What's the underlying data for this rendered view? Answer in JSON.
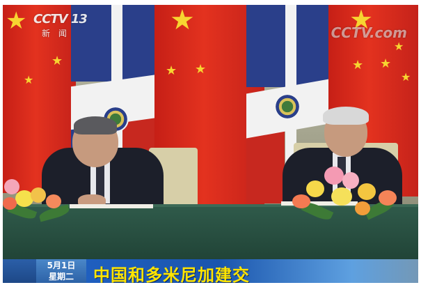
{
  "broadcast": {
    "channel_logo": "CCTV 13",
    "channel_sub": "新 闻",
    "watermark": "CCTV.com"
  },
  "caption": {
    "date": "5月1日",
    "weekday": "星期二",
    "headline": "中国和多米尼加建交"
  },
  "colors": {
    "china_red": "#dd2a1e",
    "star_yellow": "#f7d531",
    "banner_blue": "#1f5fbf",
    "headline_yellow": "#ffe400"
  }
}
